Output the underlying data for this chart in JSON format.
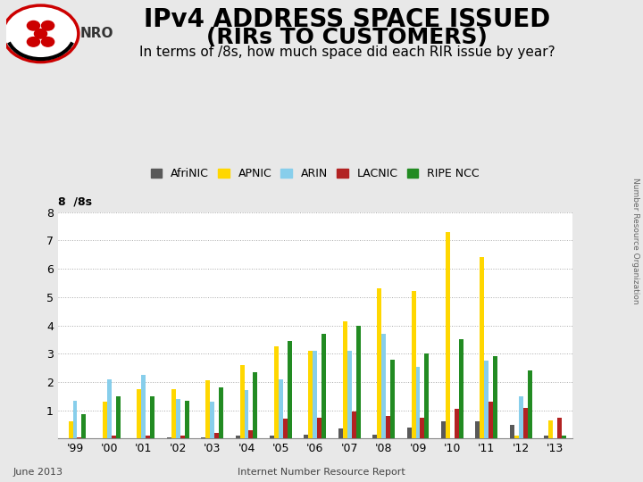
{
  "title_line1": "IPv4 ADDRESS SPACE ISSUED",
  "title_line2": "(RIRs TO CUSTOMERS)",
  "subtitle": "In terms of /8s, how much space did each RIR issue by year?",
  "ylabel_label": "8  /8s",
  "footer_left": "June 2013",
  "footer_right": "Internet Number Resource Report",
  "years": [
    "'99",
    "'00",
    "'01",
    "'02",
    "'03",
    "'04",
    "'05",
    "'06",
    "'07",
    "'08",
    "'09",
    "'10",
    "'11",
    "'12",
    "'13"
  ],
  "series_order": [
    "AfriNIC",
    "APNIC",
    "ARIN",
    "LACNIC",
    "RIPE NCC"
  ],
  "series": {
    "AfriNIC": {
      "color": "#595959",
      "values": [
        0.02,
        0.02,
        0.02,
        0.05,
        0.05,
        0.1,
        0.12,
        0.15,
        0.35,
        0.15,
        0.4,
        0.6,
        0.6,
        0.5,
        0.1
      ]
    },
    "APNIC": {
      "color": "#FFD700",
      "values": [
        0.6,
        1.3,
        1.75,
        1.75,
        2.05,
        2.6,
        3.25,
        3.1,
        4.15,
        5.3,
        5.2,
        7.3,
        6.4,
        0.1,
        0.65
      ]
    },
    "ARIN": {
      "color": "#87CEEB",
      "values": [
        1.35,
        2.1,
        2.25,
        1.4,
        1.3,
        1.7,
        2.1,
        3.1,
        3.1,
        3.7,
        2.55,
        0.0,
        2.75,
        1.5,
        0.0
      ]
    },
    "LACNIC": {
      "color": "#B22222",
      "values": [
        0.05,
        0.1,
        0.1,
        0.1,
        0.2,
        0.3,
        0.7,
        0.75,
        0.95,
        0.8,
        0.75,
        1.05,
        1.3,
        1.1,
        0.75
      ]
    },
    "RIPE NCC": {
      "color": "#228B22",
      "values": [
        0.85,
        1.5,
        1.5,
        1.35,
        1.8,
        2.35,
        3.45,
        3.7,
        4.0,
        2.8,
        3.0,
        3.5,
        2.9,
        2.4,
        0.1
      ]
    }
  },
  "ylim": [
    0,
    8
  ],
  "yticks": [
    0,
    1,
    2,
    3,
    4,
    5,
    6,
    7,
    8
  ],
  "background_color": "#e8e8e8",
  "plot_bg_color": "#ffffff",
  "grid_color": "#aaaaaa",
  "title_fontsize": 20,
  "title2_fontsize": 18,
  "subtitle_fontsize": 11,
  "bar_width": 0.13
}
